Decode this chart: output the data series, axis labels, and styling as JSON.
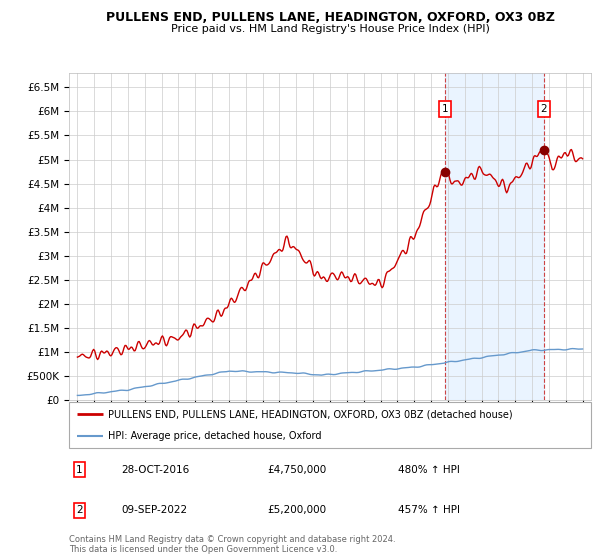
{
  "title": "PULLENS END, PULLENS LANE, HEADINGTON, OXFORD, OX3 0BZ",
  "subtitle": "Price paid vs. HM Land Registry's House Price Index (HPI)",
  "legend_line1": "PULLENS END, PULLENS LANE, HEADINGTON, OXFORD, OX3 0BZ (detached house)",
  "legend_line2": "HPI: Average price, detached house, Oxford",
  "ann1_x": 2016.82,
  "ann1_y": 4750000,
  "ann1_label": "1",
  "ann1_date": "28-OCT-2016",
  "ann1_price": "£4,750,000",
  "ann1_hpi": "480% ↑ HPI",
  "ann2_x": 2022.69,
  "ann2_y": 5200000,
  "ann2_label": "2",
  "ann2_date": "09-SEP-2022",
  "ann2_price": "£5,200,000",
  "ann2_hpi": "457% ↑ HPI",
  "yticks": [
    0,
    500000,
    1000000,
    1500000,
    2000000,
    2500000,
    3000000,
    3500000,
    4000000,
    4500000,
    5000000,
    5500000,
    6000000,
    6500000
  ],
  "ytick_labels": [
    "£0",
    "£500K",
    "£1M",
    "£1.5M",
    "£2M",
    "£2.5M",
    "£3M",
    "£3.5M",
    "£4M",
    "£4.5M",
    "£5M",
    "£5.5M",
    "£6M",
    "£6.5M"
  ],
  "xtick_years": [
    1995,
    1996,
    1997,
    1998,
    1999,
    2000,
    2001,
    2002,
    2003,
    2004,
    2005,
    2006,
    2007,
    2008,
    2009,
    2010,
    2011,
    2012,
    2013,
    2014,
    2015,
    2016,
    2017,
    2018,
    2019,
    2020,
    2021,
    2022,
    2023,
    2024,
    2025
  ],
  "xmin": 1994.5,
  "xmax": 2025.5,
  "ymin": 0,
  "ymax": 6800000,
  "red_color": "#cc0000",
  "blue_color": "#6699cc",
  "shade_color": "#ddeeff",
  "grid_color": "#cccccc",
  "footnote": "Contains HM Land Registry data © Crown copyright and database right 2024.\nThis data is licensed under the Open Government Licence v3.0."
}
